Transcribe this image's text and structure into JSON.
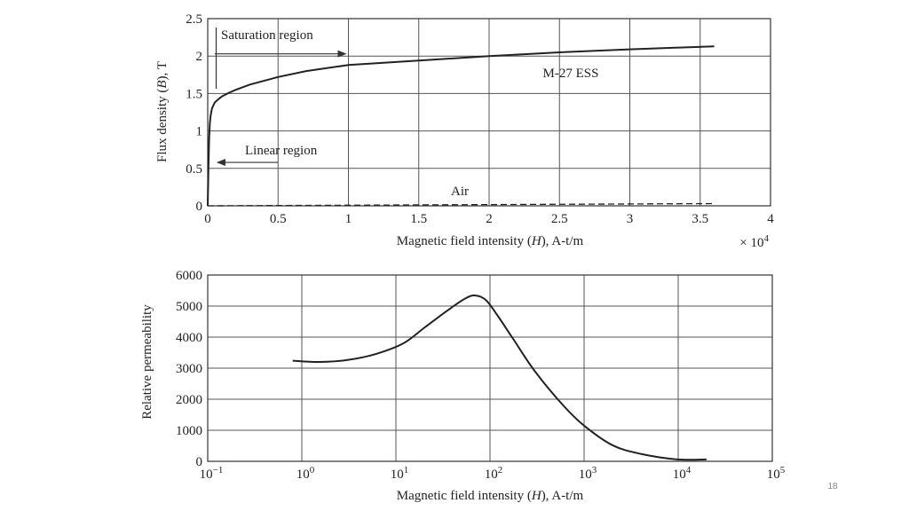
{
  "slide": {
    "page_number": "18"
  },
  "chart_data": [
    {
      "type": "line",
      "xlabel_parts": [
        "Magnetic field intensity (",
        "H",
        "), A-t/m"
      ],
      "ylabel_parts": [
        "Flux density (",
        "B",
        "), T"
      ],
      "x_multiplier": {
        "prefix": "× 10",
        "exp": "4"
      },
      "xlim": [
        0,
        4
      ],
      "ylim": [
        0,
        2.5
      ],
      "x_ticks": [
        "0",
        "0.5",
        "1",
        "1.5",
        "2",
        "2.5",
        "3",
        "3.5",
        "4"
      ],
      "y_ticks": [
        "0",
        "0.5",
        "1",
        "1.5",
        "2",
        "2.5"
      ],
      "grid": true,
      "series": [
        {
          "name": "M-27 ESS",
          "style": "solid",
          "x": [
            0,
            0.005,
            0.01,
            0.015,
            0.02,
            0.03,
            0.05,
            0.08,
            0.1,
            0.15,
            0.2,
            0.3,
            0.5,
            0.7,
            1.0,
            1.5,
            2.0,
            2.5,
            3.0,
            3.3,
            3.6
          ],
          "y": [
            0,
            0.5,
            0.9,
            1.1,
            1.2,
            1.3,
            1.38,
            1.43,
            1.46,
            1.51,
            1.55,
            1.62,
            1.72,
            1.8,
            1.88,
            1.94,
            2.0,
            2.05,
            2.09,
            2.11,
            2.13
          ]
        },
        {
          "name": "Air",
          "style": "dashed",
          "x": [
            0,
            3.6
          ],
          "y": [
            0,
            0.03
          ]
        }
      ],
      "annotations": [
        {
          "text": "Saturation region",
          "arrow": "right",
          "x_from": 0.05,
          "x_to": 1.0,
          "y": 2.03
        },
        {
          "text": "Linear region",
          "arrow": "left",
          "x_from": 0.5,
          "x_to": 0.05,
          "y": 0.58
        }
      ]
    },
    {
      "type": "line",
      "xscale": "log",
      "xlabel_parts": [
        "Magnetic field intensity (",
        "H",
        "), A-t/m"
      ],
      "ylabel": "Relative permeability",
      "xlim": [
        0.1,
        100000
      ],
      "ylim": [
        0,
        6000
      ],
      "x_ticks": [
        {
          "base": "10",
          "exp": "−1"
        },
        {
          "base": "10",
          "exp": "0"
        },
        {
          "base": "10",
          "exp": "1"
        },
        {
          "base": "10",
          "exp": "2"
        },
        {
          "base": "10",
          "exp": "3"
        },
        {
          "base": "10",
          "exp": "4"
        },
        {
          "base": "10",
          "exp": "5"
        }
      ],
      "y_ticks": [
        "0",
        "1000",
        "2000",
        "3000",
        "4000",
        "5000",
        "6000"
      ],
      "grid": true,
      "series": [
        {
          "style": "solid",
          "x": [
            0.8,
            1.5,
            3,
            6,
            12,
            20,
            35,
            55,
            70,
            90,
            120,
            180,
            300,
            600,
            1000,
            2000,
            4000,
            10000,
            20000
          ],
          "y": [
            3240,
            3200,
            3260,
            3450,
            3800,
            4300,
            4850,
            5250,
            5340,
            5200,
            4700,
            3900,
            2900,
            1800,
            1150,
            520,
            240,
            60,
            60
          ]
        }
      ]
    }
  ]
}
